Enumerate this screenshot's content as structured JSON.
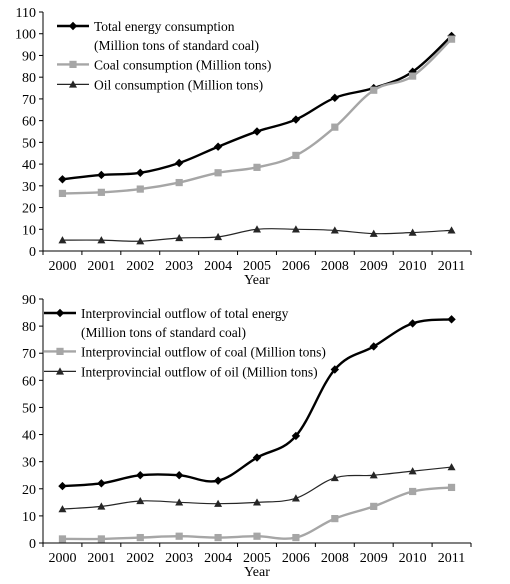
{
  "chart_data": [
    {
      "type": "line",
      "xlabel": "Year",
      "ylabel": "",
      "ylim": [
        0,
        110
      ],
      "yticks": [
        0,
        10,
        20,
        30,
        40,
        50,
        60,
        70,
        80,
        90,
        100,
        110
      ],
      "categories": [
        "2000",
        "2001",
        "2002",
        "2003",
        "2004",
        "2005",
        "2006",
        "2008",
        "2009",
        "2010",
        "2011"
      ],
      "legend_position": "top-left",
      "series": [
        {
          "name": "Total energy consumption",
          "name_line2": "(Million tons of standard coal)",
          "color": "#000000",
          "marker": "diamond",
          "values": [
            33,
            35,
            36,
            40.5,
            48,
            55,
            60.5,
            70.5,
            75,
            82.5,
            99
          ]
        },
        {
          "name": "Coal consumption (Million tons)",
          "color": "#a6a6a6",
          "marker": "square",
          "values": [
            26.5,
            27,
            28.5,
            31.5,
            36,
            38.5,
            44,
            57,
            74,
            80.5,
            97.5
          ]
        },
        {
          "name": "Oil consumption (Million tons)",
          "color": "#262626",
          "marker": "triangle",
          "values": [
            5,
            5,
            4.5,
            6,
            6.5,
            10,
            10,
            9.5,
            8,
            8.5,
            9.5
          ]
        }
      ]
    },
    {
      "type": "line",
      "xlabel": "Year",
      "ylabel": "",
      "ylim": [
        0,
        90
      ],
      "yticks": [
        0,
        10,
        20,
        30,
        40,
        50,
        60,
        70,
        80,
        90
      ],
      "categories": [
        "2000",
        "2001",
        "2002",
        "2003",
        "2004",
        "2005",
        "2006",
        "2008",
        "2009",
        "2010",
        "2011"
      ],
      "legend_position": "top-left",
      "series": [
        {
          "name": "Interprovincial outflow of total energy",
          "name_line2": "(Million tons of standard coal)",
          "color": "#000000",
          "marker": "diamond",
          "values": [
            21,
            22,
            25,
            25,
            23,
            31.5,
            39.5,
            64,
            72.5,
            81,
            82.5
          ]
        },
        {
          "name": "Interprovincial outflow of coal (Million tons)",
          "color": "#a6a6a6",
          "marker": "square",
          "values": [
            1.5,
            1.5,
            2,
            2.5,
            2,
            2.5,
            2,
            9,
            13.5,
            19,
            20.5
          ]
        },
        {
          "name": "Interprovincial outflow of oil (Million tons)",
          "color": "#262626",
          "marker": "triangle",
          "values": [
            12.5,
            13.5,
            15.5,
            15,
            14.5,
            15,
            16.5,
            24,
            25,
            26.5,
            28
          ]
        }
      ]
    }
  ]
}
